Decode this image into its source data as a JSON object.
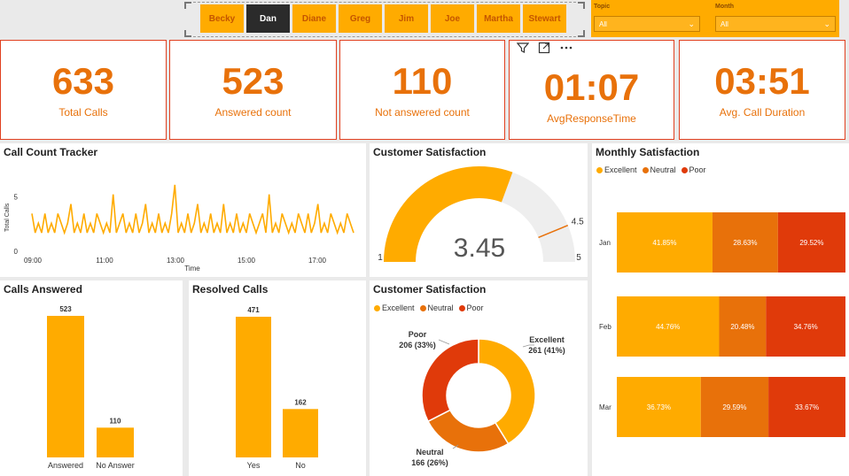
{
  "slicer_agents": {
    "items": [
      "Becky",
      "Dan",
      "Diane",
      "Greg",
      "Jim",
      "Joe",
      "Martha",
      "Stewart"
    ],
    "selected": "Dan"
  },
  "filters": {
    "topic": {
      "label": "Topic",
      "value": "All"
    },
    "month": {
      "label": "Month",
      "value": "All"
    }
  },
  "kpis": {
    "total_calls": {
      "value": "633",
      "label": "Total Calls"
    },
    "answered": {
      "value": "523",
      "label": "Answered count"
    },
    "not_answered": {
      "value": "110",
      "label": "Not answered count"
    },
    "avg_response": {
      "value": "01:07",
      "label": "AvgResponseTime"
    },
    "avg_duration": {
      "value": "03:51",
      "label": "Avg. Call Duration"
    }
  },
  "colors": {
    "excellent": "#ffab00",
    "neutral": "#e8710a",
    "poor": "#e03a0a",
    "kpi_text": "#e8710a",
    "gauge_track": "#eeeeee"
  },
  "call_tracker": {
    "title": "Call Count Tracker",
    "ylabel": "Total Calls",
    "xlabel": "Time",
    "yticks": [
      "0",
      "5"
    ],
    "xticks": [
      "09:00",
      "11:00",
      "13:00",
      "15:00",
      "17:00"
    ]
  },
  "gauge": {
    "title": "Customer Satisfaction",
    "value": "3.45",
    "min": "1",
    "max": "5",
    "target": "4.5"
  },
  "monthly": {
    "title": "Monthly Satisfaction",
    "legend": [
      "Excellent",
      "Neutral",
      "Poor"
    ]
  },
  "calls_answered": {
    "title": "Calls Answered"
  },
  "resolved": {
    "title": "Resolved Calls"
  },
  "donut": {
    "title": "Customer Satisfaction",
    "legend": [
      "Excellent",
      "Neutral",
      "Poor"
    ],
    "labels": {
      "excellent_name": "Excellent",
      "excellent_value": "261 (41%)",
      "neutral_name": "Neutral",
      "neutral_value": "166 (26%)",
      "poor_name": "Poor",
      "poor_value": "206 (33%)"
    }
  },
  "chart_data": [
    {
      "type": "line",
      "title": "Call Count Tracker",
      "xlabel": "Time",
      "ylabel": "Total Calls",
      "xlim": [
        "08:40",
        "18:00"
      ],
      "ylim": [
        0,
        7
      ],
      "series": [
        {
          "values": [
            3,
            1,
            2,
            1,
            3,
            1,
            2,
            1,
            3,
            2,
            1,
            2,
            4,
            1,
            2,
            1,
            3,
            1,
            2,
            1,
            3,
            2,
            1,
            2,
            1,
            5,
            1,
            2,
            3,
            1,
            2,
            1,
            3,
            1,
            2,
            4,
            1,
            2,
            1,
            3,
            1,
            2,
            1,
            3,
            6,
            1,
            2,
            1,
            3,
            1,
            2,
            4,
            1,
            2,
            1,
            3,
            1,
            2,
            1,
            4,
            1,
            2,
            1,
            3,
            1,
            2,
            1,
            3,
            2,
            1,
            2,
            3,
            1,
            5,
            1,
            2,
            1,
            3,
            2,
            1,
            2,
            1,
            3,
            2,
            1,
            3,
            1,
            2,
            4,
            1,
            2,
            1,
            3,
            2,
            1,
            2,
            1,
            3,
            2,
            1
          ]
        }
      ]
    },
    {
      "type": "gauge",
      "title": "Customer Satisfaction",
      "value": 3.45,
      "min": 1,
      "max": 5,
      "target": 4.5
    },
    {
      "type": "bar",
      "title": "Calls Answered",
      "categories": [
        "Answered",
        "No Answer"
      ],
      "values": [
        523,
        110
      ]
    },
    {
      "type": "bar",
      "title": "Resolved Calls",
      "categories": [
        "Yes",
        "No"
      ],
      "values": [
        471,
        162
      ]
    },
    {
      "type": "pie",
      "title": "Customer Satisfaction",
      "categories": [
        "Excellent",
        "Neutral",
        "Poor"
      ],
      "values": [
        261,
        166,
        206
      ],
      "data_labels": [
        "261 (41%)",
        "166 (26%)",
        "206 (33%)"
      ]
    },
    {
      "type": "bar",
      "title": "Monthly Satisfaction",
      "stacked": "100%",
      "orientation": "horizontal",
      "categories": [
        "Jan",
        "Feb",
        "Mar"
      ],
      "series": [
        {
          "name": "Excellent",
          "values": [
            41.85,
            44.76,
            36.73
          ],
          "labels": [
            "41.85%",
            "44.76%",
            "36.73%"
          ]
        },
        {
          "name": "Neutral",
          "values": [
            28.63,
            20.48,
            29.59
          ],
          "labels": [
            "28.63%",
            "20.48%",
            "29.59%"
          ]
        },
        {
          "name": "Poor",
          "values": [
            29.52,
            34.76,
            33.67
          ],
          "labels": [
            "29.52%",
            "34.76%",
            "33.67%"
          ]
        }
      ]
    }
  ]
}
